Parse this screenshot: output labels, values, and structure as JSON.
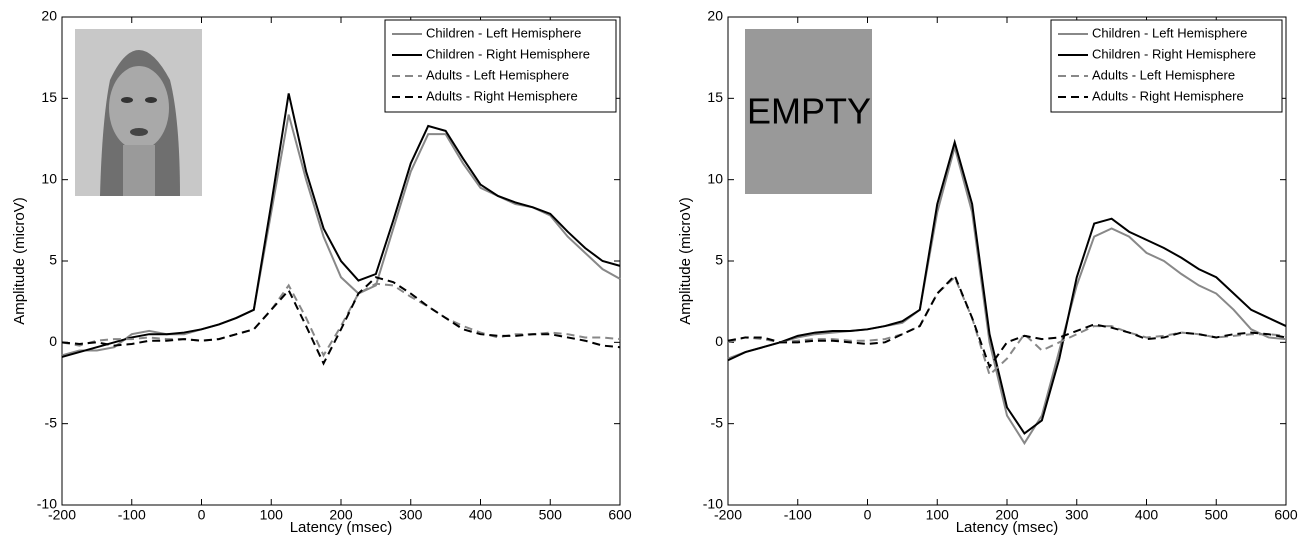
{
  "chart_data": [
    {
      "type": "line",
      "xlabel": "Latency (msec)",
      "ylabel": "Amplitude (microV)",
      "xlim": [
        -200,
        600
      ],
      "xticks": [
        -200,
        -100,
        0,
        100,
        200,
        300,
        400,
        500,
        600
      ],
      "ylim": [
        -10,
        20
      ],
      "yticks": [
        -10,
        -5,
        0,
        5,
        10,
        15,
        20
      ],
      "grid": false,
      "legend": "upper right",
      "x": [
        -200,
        -175,
        -150,
        -125,
        -100,
        -75,
        -50,
        -25,
        0,
        25,
        50,
        75,
        100,
        125,
        150,
        175,
        200,
        225,
        250,
        275,
        300,
        325,
        350,
        375,
        400,
        425,
        450,
        475,
        500,
        525,
        550,
        575,
        600
      ],
      "series": [
        {
          "name": "Children - Left Hemisphere",
          "color": "#888888",
          "linestyle": "solid",
          "values": [
            -0.8,
            -0.5,
            -0.5,
            -0.3,
            0.5,
            0.7,
            0.5,
            0.5,
            0.8,
            1.1,
            1.5,
            2.0,
            8.0,
            14.0,
            10.0,
            6.5,
            4.0,
            3.0,
            3.5,
            7.0,
            10.5,
            12.8,
            12.8,
            11.0,
            9.5,
            9.0,
            8.5,
            8.3,
            7.8,
            6.5,
            5.5,
            4.5,
            3.9
          ]
        },
        {
          "name": "Children - Right Hemisphere",
          "color": "#000000",
          "linestyle": "solid",
          "values": [
            -0.9,
            -0.6,
            -0.3,
            0.0,
            0.3,
            0.5,
            0.5,
            0.6,
            0.8,
            1.1,
            1.5,
            2.0,
            8.5,
            15.3,
            10.5,
            7.0,
            5.0,
            3.8,
            4.2,
            7.5,
            11.0,
            13.3,
            13.0,
            11.3,
            9.7,
            9.0,
            8.6,
            8.3,
            7.9,
            6.8,
            5.8,
            5.0,
            4.7
          ]
        },
        {
          "name": "Adults - Left Hemisphere",
          "color": "#888888",
          "linestyle": "dashed",
          "values": [
            0.0,
            -0.2,
            0.1,
            0.2,
            0.2,
            0.3,
            0.2,
            0.2,
            0.1,
            0.2,
            0.5,
            0.8,
            2.0,
            3.5,
            1.5,
            -0.8,
            1.0,
            3.0,
            3.6,
            3.5,
            2.8,
            2.2,
            1.5,
            1.0,
            0.6,
            0.3,
            0.5,
            0.5,
            0.6,
            0.5,
            0.3,
            0.3,
            0.2
          ]
        },
        {
          "name": "Adults - Right Hemisphere",
          "color": "#000000",
          "linestyle": "dashed",
          "values": [
            0.0,
            -0.1,
            0.0,
            -0.2,
            -0.1,
            0.1,
            0.1,
            0.2,
            0.1,
            0.2,
            0.5,
            0.8,
            2.0,
            3.2,
            1.0,
            -1.3,
            0.8,
            3.0,
            4.0,
            3.7,
            3.0,
            2.2,
            1.5,
            0.8,
            0.5,
            0.4,
            0.4,
            0.5,
            0.5,
            0.3,
            0.1,
            -0.2,
            -0.3
          ]
        }
      ]
    },
    {
      "type": "line",
      "xlabel": "Latency (msec)",
      "ylabel": "Amplitude (microV)",
      "annotation": "EMPTY",
      "xlim": [
        -200,
        600
      ],
      "xticks": [
        -200,
        -100,
        0,
        100,
        200,
        300,
        400,
        500,
        600
      ],
      "ylim": [
        -10,
        20
      ],
      "yticks": [
        -10,
        -5,
        0,
        5,
        10,
        15,
        20
      ],
      "grid": false,
      "legend": "upper right",
      "x": [
        -200,
        -175,
        -150,
        -125,
        -100,
        -75,
        -50,
        -25,
        0,
        25,
        50,
        75,
        100,
        125,
        150,
        175,
        200,
        225,
        250,
        275,
        300,
        325,
        350,
        375,
        400,
        425,
        450,
        475,
        500,
        525,
        550,
        575,
        600
      ],
      "series": [
        {
          "name": "Children - Left Hemisphere",
          "color": "#888888",
          "linestyle": "solid",
          "values": [
            -1.0,
            -0.6,
            -0.3,
            0.0,
            0.3,
            0.5,
            0.6,
            0.7,
            0.8,
            1.0,
            1.2,
            2.0,
            8.0,
            12.0,
            8.0,
            0.0,
            -4.5,
            -6.2,
            -4.5,
            -0.5,
            3.5,
            6.5,
            7.0,
            6.5,
            5.5,
            5.0,
            4.2,
            3.5,
            3.0,
            2.0,
            0.8,
            0.3,
            0.2
          ]
        },
        {
          "name": "Children - Right Hemisphere",
          "color": "#000000",
          "linestyle": "solid",
          "values": [
            -1.1,
            -0.6,
            -0.3,
            0.0,
            0.4,
            0.6,
            0.7,
            0.7,
            0.8,
            1.0,
            1.3,
            2.0,
            8.5,
            12.3,
            8.5,
            0.5,
            -4.0,
            -5.6,
            -4.8,
            -1.0,
            4.0,
            7.3,
            7.6,
            6.8,
            6.3,
            5.8,
            5.2,
            4.5,
            4.0,
            3.0,
            2.0,
            1.5,
            1.0
          ]
        },
        {
          "name": "Adults - Left Hemisphere",
          "color": "#888888",
          "linestyle": "dashed",
          "values": [
            0.0,
            0.3,
            0.2,
            0.0,
            0.1,
            0.2,
            0.2,
            0.1,
            0.1,
            0.2,
            0.5,
            1.0,
            3.0,
            4.0,
            1.5,
            -2.0,
            -1.0,
            0.5,
            -0.5,
            0.0,
            0.5,
            1.0,
            1.0,
            0.6,
            0.3,
            0.4,
            0.6,
            0.5,
            0.3,
            0.4,
            0.5,
            0.5,
            0.4
          ]
        },
        {
          "name": "Adults - Right Hemisphere",
          "color": "#000000",
          "linestyle": "dashed",
          "values": [
            0.1,
            0.3,
            0.3,
            0.0,
            0.0,
            0.1,
            0.1,
            0.0,
            -0.1,
            0.0,
            0.5,
            1.0,
            3.0,
            4.1,
            1.5,
            -1.5,
            0.0,
            0.4,
            0.2,
            0.3,
            0.7,
            1.1,
            0.9,
            0.6,
            0.2,
            0.3,
            0.6,
            0.5,
            0.3,
            0.5,
            0.6,
            0.5,
            0.3
          ]
        }
      ]
    }
  ]
}
